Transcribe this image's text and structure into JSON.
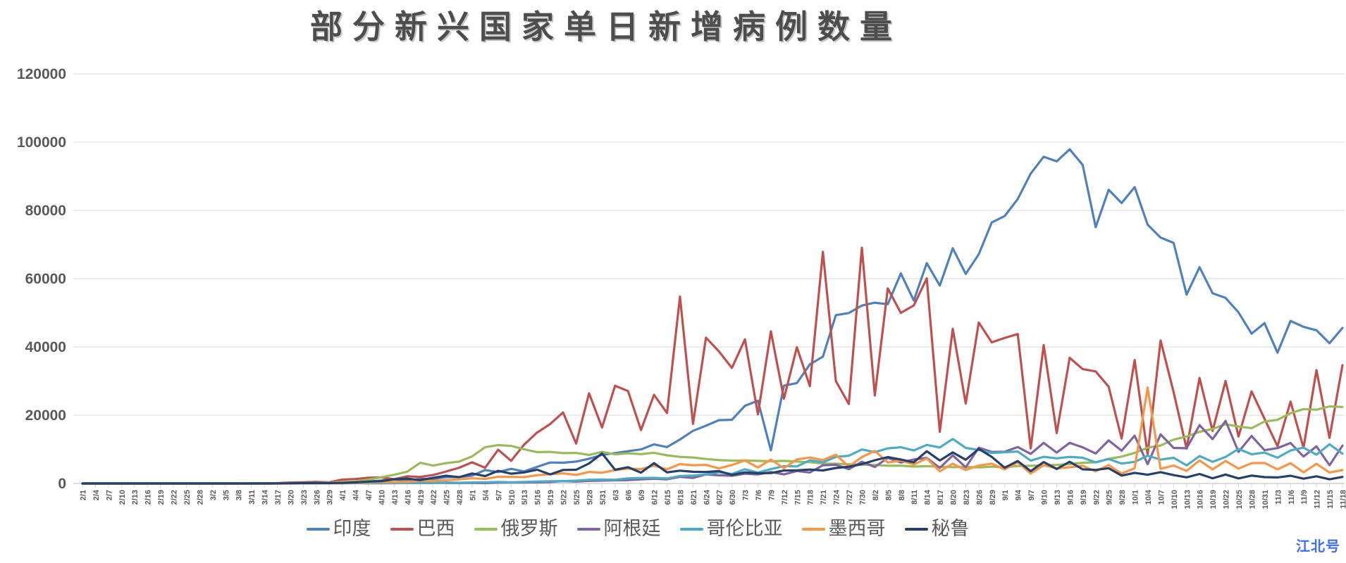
{
  "title": "部分新兴国家单日新增病例数量",
  "watermark": "江北号",
  "chart_data": {
    "type": "line",
    "title": "部分新兴国家单日新增病例数量",
    "xlabel": "",
    "ylabel": "",
    "ylim": [
      0,
      120000
    ],
    "ytick_step": 20000,
    "ytick_labels": [
      "0",
      "20000",
      "40000",
      "60000",
      "80000",
      "100000",
      "120000"
    ],
    "grid": true,
    "legend_position": "bottom",
    "categories": [
      "2/1",
      "2/4",
      "2/7",
      "2/10",
      "2/13",
      "2/16",
      "2/19",
      "2/22",
      "2/25",
      "2/28",
      "3/2",
      "3/5",
      "3/8",
      "3/11",
      "3/14",
      "3/17",
      "3/20",
      "3/23",
      "3/26",
      "3/29",
      "4/1",
      "4/4",
      "4/7",
      "4/10",
      "4/13",
      "4/16",
      "4/19",
      "4/22",
      "4/25",
      "4/28",
      "5/1",
      "5/4",
      "5/7",
      "5/10",
      "5/13",
      "5/16",
      "5/19",
      "5/22",
      "5/25",
      "5/28",
      "5/31",
      "6/3",
      "6/6",
      "6/9",
      "6/12",
      "6/15",
      "6/18",
      "6/21",
      "6/24",
      "6/27",
      "6/30",
      "7/3",
      "7/6",
      "7/9",
      "7/12",
      "7/15",
      "7/18",
      "7/21",
      "7/24",
      "7/27",
      "7/30",
      "8/2",
      "8/5",
      "8/8",
      "8/11",
      "8/14",
      "8/17",
      "8/20",
      "8/23",
      "8/26",
      "8/29",
      "9/1",
      "9/4",
      "9/7",
      "9/10",
      "9/13",
      "9/16",
      "9/19",
      "9/22",
      "9/25",
      "9/28",
      "10/1",
      "10/4",
      "10/7",
      "10/10",
      "10/13",
      "10/16",
      "10/19",
      "10/22",
      "10/25",
      "10/28",
      "10/31",
      "11/3",
      "11/6",
      "11/9",
      "11/12",
      "11/15",
      "11/18"
    ],
    "series": [
      {
        "id": "india",
        "name": "印度",
        "color": "#4F81BD",
        "values": [
          0,
          0,
          0,
          0,
          0,
          0,
          0,
          0,
          0,
          0,
          2,
          1,
          5,
          8,
          20,
          15,
          50,
          100,
          88,
          106,
          240,
          525,
          573,
          871,
          1243,
          826,
          1371,
          1292,
          1835,
          1902,
          2293,
          3932,
          3344,
          4296,
          3525,
          4864,
          6154,
          6088,
          6414,
          7254,
          8380,
          8909,
          9471,
          9987,
          11458,
          10667,
          12881,
          15413,
          16922,
          18552,
          18653,
          22771,
          24248,
          9700,
          28637,
          29429,
          34884,
          37148,
          49310,
          49931,
          52123,
          52972,
          52509,
          61537,
          53601,
          64553,
          57981,
          68898,
          61408,
          67151,
          76472,
          78357,
          83341,
          90802,
          95735,
          94372,
          97894,
          93337,
          75083,
          86052,
          82170,
          86821,
          75829,
          72049,
          70496,
          55342,
          63371,
          55722,
          54366,
          50129,
          43893,
          46963,
          38310,
          47638,
          45903,
          44879,
          41100,
          45576
        ]
      },
      {
        "id": "brazil",
        "name": "巴西",
        "color": "#C0504D",
        "values": [
          0,
          0,
          0,
          0,
          0,
          0,
          0,
          0,
          0,
          0,
          0,
          1,
          6,
          18,
          47,
          113,
          283,
          345,
          482,
          352,
          1138,
          1304,
          1661,
          1781,
          1261,
          2105,
          1927,
          2498,
          3503,
          4613,
          6209,
          4588,
          9888,
          6638,
          11385,
          14919,
          17408,
          20803,
          11687,
          26417,
          16409,
          28633,
          27075,
          15654,
          25982,
          20647,
          54771,
          17459,
          42725,
          38693,
          33846,
          42223,
          20229,
          44571,
          24831,
          39924,
          28532,
          67860,
          30000,
          23284,
          69074,
          25800,
          57152,
          49970,
          52160,
          60091,
          15155,
          45323,
          23421,
          47161,
          41350,
          42659,
          43773,
          10273,
          40557,
          14768,
          36820,
          33523,
          32817,
          28378,
          13155,
          36157,
          8456,
          41906,
          26749,
          10220,
          30914,
          15383,
          30026,
          13755,
          26979,
          18947,
          10917,
          23976,
          10440,
          33207,
          13371,
          34666
        ]
      },
      {
        "id": "russia",
        "name": "俄罗斯",
        "color": "#9BBB59",
        "values": [
          0,
          0,
          0,
          0,
          0,
          0,
          0,
          0,
          0,
          0,
          0,
          0,
          0,
          8,
          14,
          21,
          54,
          71,
          182,
          270,
          440,
          582,
          1154,
          1786,
          2558,
          3448,
          6060,
          5236,
          5966,
          6411,
          7933,
          10633,
          11231,
          11012,
          10028,
          9200,
          9263,
          8894,
          8946,
          8371,
          9268,
          8536,
          8855,
          8595,
          8987,
          8246,
          7790,
          7600,
          7176,
          6852,
          6693,
          6718,
          6611,
          6509,
          6615,
          6422,
          6234,
          5842,
          5811,
          5635,
          5509,
          5427,
          5204,
          5212,
          4945,
          5065,
          4892,
          4785,
          4852,
          4696,
          4941,
          4729,
          5110,
          5185,
          5310,
          5449,
          5670,
          6065,
          6215,
          7212,
          7867,
          8945,
          10499,
          11115,
          12846,
          13754,
          15150,
          15982,
          17340,
          16710,
          16202,
          18140,
          18648,
          20582,
          21798,
          21608,
          22572,
          22410
        ]
      },
      {
        "id": "argentina",
        "name": "阿根廷",
        "color": "#8064A2",
        "values": [
          0,
          0,
          0,
          0,
          0,
          0,
          0,
          0,
          0,
          0,
          0,
          0,
          0,
          1,
          4,
          10,
          30,
          86,
          75,
          55,
          88,
          103,
          87,
          81,
          98,
          127,
          102,
          144,
          173,
          124,
          156,
          104,
          255,
          258,
          316,
          345,
          438,
          704,
          552,
          769,
          846,
          929,
          983,
          1226,
          1391,
          1208,
          1958,
          1634,
          2648,
          2401,
          2262,
          2845,
          2632,
          3367,
          2657,
          3645,
          3223,
          5344,
          5493,
          4192,
          6377,
          4824,
          7513,
          6134,
          7043,
          7498,
          4557,
          8225,
          4741,
          10504,
          9230,
          9309,
          10684,
          8688,
          11905,
          9056,
          11892,
          10591,
          8782,
          12625,
          9603,
          14001,
          5645,
          14392,
          10409,
          10332,
          17096,
          12982,
          18326,
          9253,
          13924,
          9745,
          10363,
          11859,
          7893,
          10880,
          5350,
          11100
        ]
      },
      {
        "id": "colombia",
        "name": "哥伦比亚",
        "color": "#4BACC6",
        "values": [
          0,
          0,
          0,
          0,
          0,
          0,
          0,
          0,
          0,
          0,
          0,
          0,
          1,
          3,
          10,
          22,
          43,
          42,
          112,
          94,
          106,
          158,
          100,
          128,
          112,
          180,
          133,
          177,
          283,
          213,
          316,
          358,
          444,
          325,
          444,
          581,
          640,
          704,
          821,
          1101,
          1147,
          1089,
          1515,
          1604,
          1646,
          1471,
          2213,
          2334,
          2637,
          3274,
          2774,
          4163,
          3171,
          4213,
          5083,
          4992,
          6803,
          6184,
          7813,
          8125,
          9965,
          9199,
          10284,
          10611,
          9674,
          11306,
          10549,
          13056,
          10425,
          9791,
          8919,
          9155,
          9361,
          6698,
          7813,
          7355,
          7787,
          7548,
          6184,
          7168,
          5839,
          6331,
          8148,
          6986,
          7533,
          5304,
          8037,
          6344,
          7776,
          10119,
          8549,
          9047,
          7554,
          9674,
          10489,
          8430,
          11479,
          8728
        ]
      },
      {
        "id": "mexico",
        "name": "墨西哥",
        "color": "#F79646",
        "values": [
          0,
          0,
          0,
          0,
          0,
          0,
          0,
          0,
          0,
          0,
          0,
          1,
          2,
          4,
          8,
          27,
          41,
          65,
          97,
          131,
          163,
          202,
          346,
          375,
          442,
          450,
          764,
          729,
          970,
          1223,
          1515,
          1349,
          1982,
          1938,
          1862,
          2437,
          2713,
          2960,
          2485,
          3377,
          3152,
          3912,
          4346,
          4199,
          5222,
          4147,
          5662,
          5343,
          5437,
          4410,
          5432,
          6740,
          4683,
          6995,
          4482,
          7051,
          7615,
          6859,
          8438,
          4973,
          7730,
          9556,
          6139,
          6717,
          5558,
          7371,
          3571,
          5792,
          3948,
          5267,
          5824,
          4129,
          6196,
          2917,
          5351,
          4408,
          4771,
          5167,
          3542,
          5401,
          2917,
          4446,
          28115,
          4295,
          5263,
          3699,
          6751,
          4119,
          6604,
          4360,
          5942,
          6025,
          4137,
          5931,
          3249,
          5746,
          3218,
          3918
        ]
      },
      {
        "id": "peru",
        "name": "秘鲁",
        "color": "#25406B",
        "values": [
          0,
          0,
          0,
          0,
          0,
          0,
          0,
          0,
          0,
          0,
          0,
          0,
          1,
          4,
          10,
          28,
          49,
          105,
          116,
          131,
          163,
          325,
          530,
          671,
          1208,
          1413,
          985,
          1664,
          2264,
          1864,
          2929,
          2169,
          3709,
          2875,
          3237,
          4046,
          2660,
          3967,
          4020,
          5874,
          8805,
          4030,
          4757,
          3181,
          5961,
          3256,
          3752,
          3413,
          3363,
          3625,
          2511,
          3264,
          2985,
          3045,
          3797,
          3862,
          4090,
          3817,
          4546,
          4913,
          5678,
          6809,
          7734,
          7012,
          6211,
          9441,
          6750,
          9099,
          6944,
          10143,
          7786,
          4615,
          6586,
          3616,
          6275,
          4241,
          6380,
          4143,
          3987,
          4480,
          2308,
          3123,
          2567,
          3317,
          2455,
          1794,
          2789,
          1534,
          2620,
          1480,
          2303,
          1862,
          1765,
          2267,
          1398,
          2107,
          1210,
          1923
        ]
      }
    ],
    "style": {
      "grid_color": "#D9D9D9",
      "axis_color": "#C6C6C6",
      "label_color": "#595959",
      "line_width": 3.2
    }
  }
}
